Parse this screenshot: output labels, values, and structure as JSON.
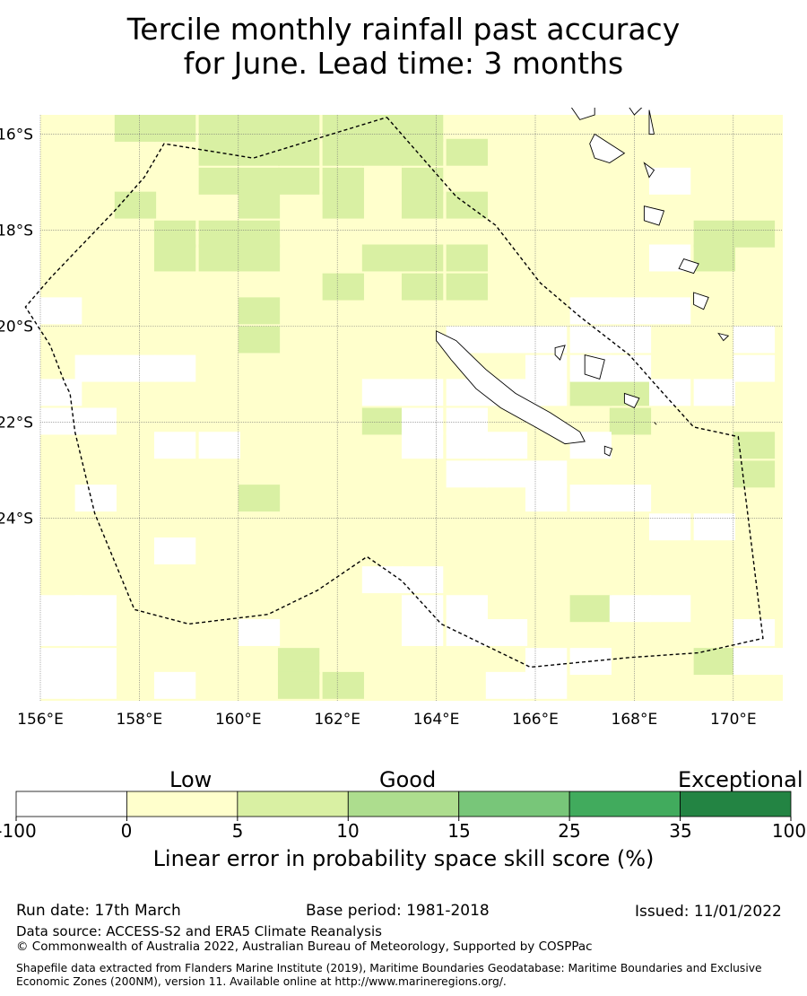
{
  "title_line1": "Tercile monthly rainfall past accuracy",
  "title_line2": "for June. Lead time: 3 months",
  "map": {
    "lon_range": [
      156,
      171
    ],
    "lat_range": [
      -27.8,
      -15.6
    ],
    "lon_ticks": [
      "156°E",
      "158°E",
      "160°E",
      "162°E",
      "164°E",
      "166°E",
      "168°E",
      "170°E"
    ],
    "lat_ticks": [
      "16°S",
      "18°S",
      "20°S",
      "22°S",
      "24°S"
    ],
    "grid_cell_deg": 0.83,
    "default_category": "0-5",
    "cells_5_10": [
      [
        157.5,
        -15.6
      ],
      [
        158.3,
        -15.6
      ],
      [
        159.2,
        -15.6
      ],
      [
        160.0,
        -15.6
      ],
      [
        160.8,
        -15.6
      ],
      [
        161.7,
        -15.6
      ],
      [
        162.5,
        -15.6
      ],
      [
        163.3,
        -15.6
      ],
      [
        159.2,
        -16.1
      ],
      [
        160.0,
        -16.1
      ],
      [
        160.8,
        -16.1
      ],
      [
        161.7,
        -16.1
      ],
      [
        162.5,
        -16.1
      ],
      [
        163.3,
        -16.1
      ],
      [
        164.2,
        -16.1
      ],
      [
        159.2,
        -16.7
      ],
      [
        160.0,
        -16.7
      ],
      [
        160.8,
        -16.7
      ],
      [
        161.7,
        -16.7
      ],
      [
        163.3,
        -16.7
      ],
      [
        157.5,
        -17.2
      ],
      [
        160.0,
        -17.2
      ],
      [
        161.7,
        -17.2
      ],
      [
        163.3,
        -17.2
      ],
      [
        164.2,
        -17.2
      ],
      [
        158.3,
        -17.8
      ],
      [
        159.2,
        -17.8
      ],
      [
        160.0,
        -17.8
      ],
      [
        169.2,
        -17.8
      ],
      [
        170.0,
        -17.8
      ],
      [
        158.3,
        -18.3
      ],
      [
        159.2,
        -18.3
      ],
      [
        160.0,
        -18.3
      ],
      [
        162.5,
        -18.3
      ],
      [
        163.3,
        -18.3
      ],
      [
        164.2,
        -18.3
      ],
      [
        169.2,
        -18.3
      ],
      [
        161.7,
        -18.9
      ],
      [
        163.3,
        -18.9
      ],
      [
        164.2,
        -18.9
      ],
      [
        160.0,
        -19.4
      ],
      [
        160.0,
        -20.0
      ],
      [
        166.7,
        -21.1
      ],
      [
        167.5,
        -21.1
      ],
      [
        162.5,
        -21.7
      ],
      [
        167.5,
        -21.7
      ],
      [
        170.0,
        -22.2
      ],
      [
        170.0,
        -22.8
      ],
      [
        160.0,
        -23.3
      ],
      [
        166.7,
        -25.6
      ],
      [
        160.8,
        -26.7
      ],
      [
        169.2,
        -26.7
      ],
      [
        160.8,
        -27.2
      ],
      [
        161.7,
        -27.2
      ]
    ],
    "cells_below_0": [
      [
        168.3,
        -16.7
      ],
      [
        168.3,
        -18.3
      ],
      [
        156.0,
        -19.4
      ],
      [
        166.7,
        -19.4
      ],
      [
        167.5,
        -19.4
      ],
      [
        168.3,
        -19.4
      ],
      [
        164.2,
        -20.0
      ],
      [
        165.0,
        -20.0
      ],
      [
        165.8,
        -20.0
      ],
      [
        166.7,
        -20.0
      ],
      [
        167.5,
        -20.0
      ],
      [
        170.0,
        -20.0
      ],
      [
        156.7,
        -20.6
      ],
      [
        157.5,
        -20.6
      ],
      [
        158.3,
        -20.6
      ],
      [
        165.8,
        -20.6
      ],
      [
        166.7,
        -20.6
      ],
      [
        167.5,
        -20.6
      ],
      [
        170.0,
        -20.6
      ],
      [
        156.0,
        -21.1
      ],
      [
        162.5,
        -21.1
      ],
      [
        163.3,
        -21.1
      ],
      [
        164.2,
        -21.1
      ],
      [
        165.0,
        -21.1
      ],
      [
        165.8,
        -21.1
      ],
      [
        168.3,
        -21.1
      ],
      [
        169.2,
        -21.1
      ],
      [
        156.0,
        -21.7
      ],
      [
        156.7,
        -21.7
      ],
      [
        163.3,
        -21.7
      ],
      [
        164.2,
        -21.7
      ],
      [
        158.3,
        -22.2
      ],
      [
        159.2,
        -22.2
      ],
      [
        163.3,
        -22.2
      ],
      [
        164.2,
        -22.2
      ],
      [
        165.0,
        -22.2
      ],
      [
        166.7,
        -22.2
      ],
      [
        164.2,
        -22.8
      ],
      [
        165.0,
        -22.8
      ],
      [
        165.8,
        -22.8
      ],
      [
        156.7,
        -23.3
      ],
      [
        165.8,
        -23.3
      ],
      [
        166.7,
        -23.3
      ],
      [
        167.5,
        -23.3
      ],
      [
        168.3,
        -23.9
      ],
      [
        169.2,
        -23.9
      ],
      [
        158.3,
        -24.4
      ],
      [
        162.5,
        -25.0
      ],
      [
        163.3,
        -25.0
      ],
      [
        156.0,
        -25.6
      ],
      [
        156.7,
        -25.6
      ],
      [
        163.3,
        -25.6
      ],
      [
        164.2,
        -25.6
      ],
      [
        167.5,
        -25.6
      ],
      [
        168.3,
        -25.6
      ],
      [
        156.0,
        -26.1
      ],
      [
        156.7,
        -26.1
      ],
      [
        160.0,
        -26.1
      ],
      [
        163.3,
        -26.1
      ],
      [
        164.2,
        -26.1
      ],
      [
        165.0,
        -26.1
      ],
      [
        170.0,
        -26.1
      ],
      [
        156.0,
        -26.7
      ],
      [
        156.7,
        -26.7
      ],
      [
        165.8,
        -26.7
      ],
      [
        166.7,
        -26.7
      ],
      [
        170.0,
        -26.7
      ],
      [
        170.8,
        -26.7
      ],
      [
        156.0,
        -27.2
      ],
      [
        156.7,
        -27.2
      ],
      [
        158.3,
        -27.2
      ],
      [
        165.0,
        -27.2
      ],
      [
        165.8,
        -27.2
      ]
    ],
    "eez_boundary": [
      [
        163.0,
        -15.65
      ],
      [
        164.4,
        -17.3
      ],
      [
        165.2,
        -17.9
      ],
      [
        165.5,
        -18.3
      ],
      [
        166.1,
        -19.1
      ],
      [
        166.9,
        -19.8
      ],
      [
        167.9,
        -20.6
      ],
      [
        168.5,
        -21.3
      ],
      [
        169.2,
        -22.1
      ],
      [
        170.1,
        -22.3
      ],
      [
        170.6,
        -26.5
      ],
      [
        169.3,
        -26.8
      ],
      [
        167.9,
        -26.9
      ],
      [
        165.9,
        -27.1
      ],
      [
        164.1,
        -26.2
      ],
      [
        163.3,
        -25.3
      ],
      [
        162.6,
        -24.8
      ],
      [
        161.6,
        -25.5
      ],
      [
        160.6,
        -26.0
      ],
      [
        159.0,
        -26.2
      ],
      [
        157.9,
        -25.9
      ],
      [
        157.1,
        -23.9
      ],
      [
        156.7,
        -22.2
      ],
      [
        156.6,
        -21.4
      ],
      [
        156.5,
        -21.2
      ],
      [
        156.2,
        -20.4
      ],
      [
        155.7,
        -19.6
      ],
      [
        156.2,
        -19.0
      ],
      [
        157.5,
        -17.6
      ],
      [
        158.1,
        -16.9
      ],
      [
        158.5,
        -16.2
      ],
      [
        160.3,
        -16.5
      ],
      [
        163.0,
        -15.65
      ]
    ]
  },
  "colorbar": {
    "headings": [
      "Low",
      "Good",
      "Exceptional"
    ],
    "colors": [
      "#ffffff",
      "#ffffcc",
      "#d9f0a3",
      "#addd8e",
      "#78c679",
      "#41ab5d",
      "#238443"
    ],
    "ticks": [
      "-100",
      "0",
      "5",
      "10",
      "15",
      "25",
      "35",
      "100"
    ],
    "label": "Linear error in probability space skill score (%)"
  },
  "footer": {
    "run_date": "Run date: 17th March",
    "base_period": "Base period: 1981-2018",
    "issued": "Issued: 11/01/2022",
    "data_source": "Data source: ACCESS-S2 and ERA5 Climate Reanalysis",
    "copyright": "© Commonwealth of Australia 2022, Australian Bureau of Meteorology, Supported by COSPPac",
    "shapefile": "Shapefile data extracted from Flanders Marine Institute (2019), Maritime Boundaries Geodatabase: Maritime Boundaries and Exclusive Economic Zones (200NM), version 11. Available online at http://www.marineregions.org/."
  }
}
